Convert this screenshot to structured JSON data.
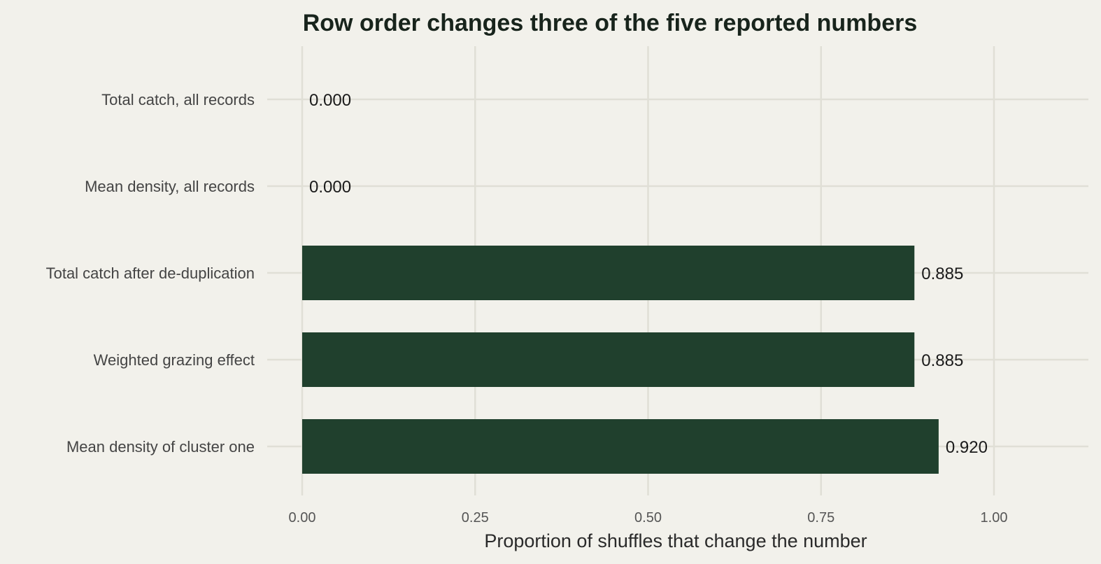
{
  "chart_data": {
    "type": "bar",
    "orientation": "horizontal",
    "title": "Row order changes three of the five reported numbers",
    "xlabel": "Proportion of shuffles that change the number",
    "ylabel": "",
    "categories": [
      "Total catch, all records",
      "Mean density, all records",
      "Total catch after de-duplication",
      "Weighted grazing effect",
      "Mean density of cluster one"
    ],
    "values": [
      0.0,
      0.0,
      0.885,
      0.885,
      0.92
    ],
    "value_labels": [
      "0.000",
      "0.000",
      "0.885",
      "0.885",
      "0.920"
    ],
    "xlim": [
      0,
      1.13
    ],
    "x_ticks": [
      0,
      0.25,
      0.5,
      0.75,
      1.0
    ],
    "x_tick_labels": [
      "0.00",
      "0.25",
      "0.50",
      "0.75",
      "1.00"
    ],
    "grid": true,
    "legend": "none",
    "colors": {
      "bar": "#20402d",
      "background": "#f2f1eb",
      "grid": "#e0dfd6"
    }
  }
}
